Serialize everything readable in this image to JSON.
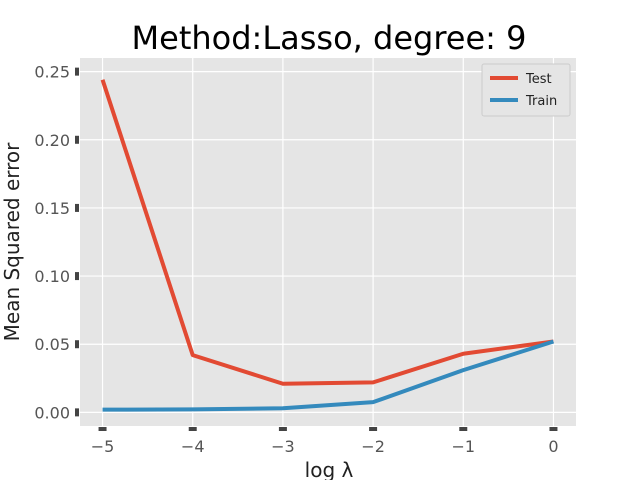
{
  "chart_data": {
    "type": "line",
    "title": "Method:Lasso, degree: 9",
    "xlabel": "log λ",
    "ylabel": "Mean Squared error",
    "x": [
      -5,
      -4,
      -3,
      -2,
      -1,
      0
    ],
    "series": [
      {
        "name": "Test",
        "color": "#e24a33",
        "values": [
          0.244,
          0.042,
          0.021,
          0.022,
          0.043,
          0.052
        ]
      },
      {
        "name": "Train",
        "color": "#348abd",
        "values": [
          0.002,
          0.0022,
          0.003,
          0.0075,
          0.031,
          0.052
        ]
      }
    ],
    "xlim": [
      -5.25,
      0.25
    ],
    "ylim": [
      -0.01,
      0.26
    ],
    "xticks": [
      -5,
      -4,
      -3,
      -2,
      -1,
      0
    ],
    "xtick_labels": [
      "−5",
      "−4",
      "−3",
      "−2",
      "−1",
      "0"
    ],
    "yticks": [
      0.0,
      0.05,
      0.1,
      0.15,
      0.2,
      0.25
    ],
    "ytick_labels": [
      "0.00",
      "0.05",
      "0.10",
      "0.15",
      "0.20",
      "0.25"
    ],
    "grid": true,
    "legend_position": "top-right",
    "background_color": "#e5e5e5",
    "grid_color": "#ffffff"
  }
}
